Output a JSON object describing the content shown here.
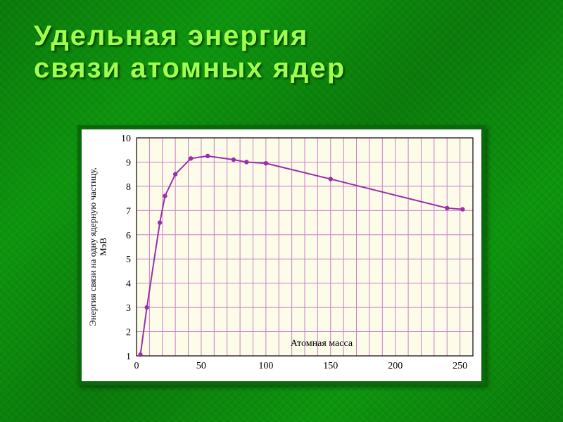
{
  "title_line1": "Удельная  энергия",
  "title_line2": "связи  атомных  ядер",
  "chart": {
    "type": "line",
    "background_color": "#ffffff",
    "plot_background_color": "#fcfce8",
    "grid_color": "#c97fc9",
    "axis_color": "#000000",
    "line_color": "#9a2fa8",
    "marker_color": "#9a2fa8",
    "line_width": 2,
    "marker_radius": 3.2,
    "xlabel": "Атомная масса",
    "ylabel": "Энергия связи на одну ядерную частицу,\nМэВ",
    "label_fontsize": 14,
    "tick_fontsize": 14,
    "xlim": [
      0,
      260
    ],
    "ylim": [
      1,
      10
    ],
    "xticks": [
      0,
      50,
      100,
      150,
      200,
      250
    ],
    "yticks": [
      1,
      2,
      3,
      4,
      5,
      6,
      7,
      8,
      9,
      10
    ],
    "x_minor_step": 10,
    "y_minor_step": 1,
    "points": [
      {
        "x": 3,
        "y": 1.05
      },
      {
        "x": 8,
        "y": 3.0
      },
      {
        "x": 18,
        "y": 6.5
      },
      {
        "x": 22,
        "y": 7.6
      },
      {
        "x": 30,
        "y": 8.5
      },
      {
        "x": 42,
        "y": 9.15
      },
      {
        "x": 55,
        "y": 9.25
      },
      {
        "x": 75,
        "y": 9.1
      },
      {
        "x": 85,
        "y": 9.0
      },
      {
        "x": 100,
        "y": 8.95
      },
      {
        "x": 150,
        "y": 8.3
      },
      {
        "x": 240,
        "y": 7.1
      },
      {
        "x": 252,
        "y": 7.05
      }
    ]
  },
  "slide_bg": "#0a8a0a",
  "title_color": "#9fff4f"
}
